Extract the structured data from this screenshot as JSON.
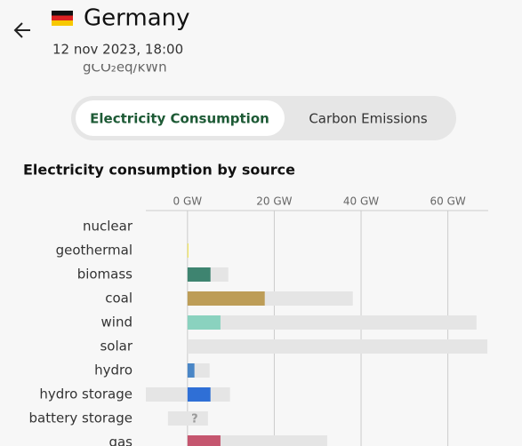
{
  "header": {
    "country": "Germany",
    "datetime": "12 nov 2023, 18:00",
    "unit": "gCO₂eq/kWh"
  },
  "tabs": [
    "Electricity Consumption",
    "Carbon Emissions"
  ],
  "chart_data": {
    "type": "bar",
    "orientation": "horizontal",
    "title": "Electricity consumption by source",
    "categories": [
      "nuclear",
      "geothermal",
      "biomass",
      "coal",
      "wind",
      "solar",
      "hydro",
      "hydro storage",
      "battery storage",
      "gas"
    ],
    "values": [
      0,
      0.2,
      5.3,
      17.8,
      7.6,
      0,
      1.6,
      5.3,
      null,
      7.6
    ],
    "value_labels": [
      null,
      null,
      null,
      null,
      null,
      null,
      null,
      null,
      "?",
      null
    ],
    "capacity_min": [
      0,
      0,
      0,
      0,
      0,
      0,
      0,
      -9.6,
      -4.5,
      0
    ],
    "capacity_max": [
      0,
      0,
      9.4,
      38.1,
      66.6,
      69.1,
      5.1,
      9.8,
      4.7,
      32.2
    ],
    "colors": [
      "#e0a8a8",
      "#f2e33c",
      "#3e8470",
      "#bd9d57",
      "#8ad2bf",
      "#f5c84c",
      "#4a86c6",
      "#2f6fd6",
      "#7a5fc4",
      "#c5566f"
    ],
    "capacity_color": "#e5e5e5",
    "xlim": [
      -9.6,
      69.3
    ],
    "xticks": [
      {
        "value": 0,
        "label": "0 GW"
      },
      {
        "value": 20,
        "label": "20 GW"
      },
      {
        "value": 40,
        "label": "40 GW"
      },
      {
        "value": 60,
        "label": "60 GW"
      }
    ],
    "grid": true
  }
}
